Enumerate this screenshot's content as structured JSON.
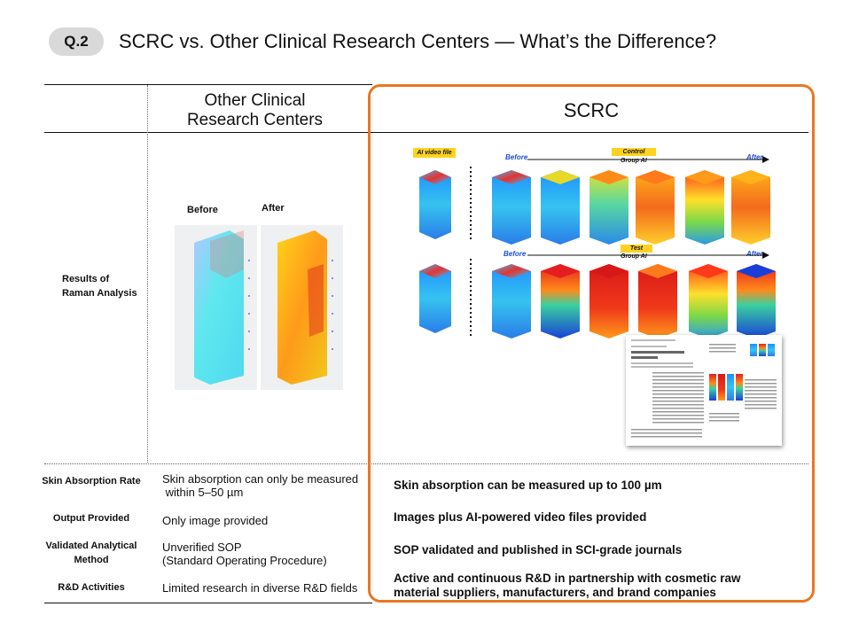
{
  "header": {
    "badge": "Q.2",
    "title": "SCRC vs. Other Clinical Research Centers — What’s the Difference?"
  },
  "columns": {
    "other": [
      "Other Clinical",
      "Research Centers"
    ],
    "scrc": "SCRC"
  },
  "raman": {
    "label_line1": "Results of",
    "label_line2": "Raman Analysis",
    "other_images": {
      "before": "Before",
      "after": "After"
    },
    "scrc_panel": {
      "video_tag": "AI video file",
      "control_tag": "Control",
      "test_tag": "Test",
      "group_label": "Group AI",
      "before": "Before",
      "after": "After"
    }
  },
  "rows": [
    {
      "label": [
        "Skin Absorption Rate"
      ],
      "other": [
        "Skin absorption can only be measured",
        " within 5–50 µm"
      ],
      "scrc": [
        "Skin absorption can be measured up to 100 µm"
      ]
    },
    {
      "label": [
        "Output Provided"
      ],
      "other": [
        "Only image provided"
      ],
      "scrc": [
        "Images plus AI-powered video files provided"
      ]
    },
    {
      "label": [
        "Validated Analytical",
        "Method"
      ],
      "other": [
        "Unverified SOP",
        "(Standard Operating Procedure)"
      ],
      "scrc": [
        "SOP validated and published in SCI-grade journals"
      ]
    },
    {
      "label": [
        "R&D Activities"
      ],
      "other": [
        "Limited research in diverse R&D fields"
      ],
      "scrc": [
        "Active and continuous R&D in partnership with cosmetic raw",
        "material suppliers, manufacturers, and brand companies"
      ]
    }
  ],
  "colors": {
    "accent": "#e87722",
    "badge": "#d9d9d9",
    "tag": "#ffd21f",
    "arrow_text": "#1f4fd8"
  }
}
